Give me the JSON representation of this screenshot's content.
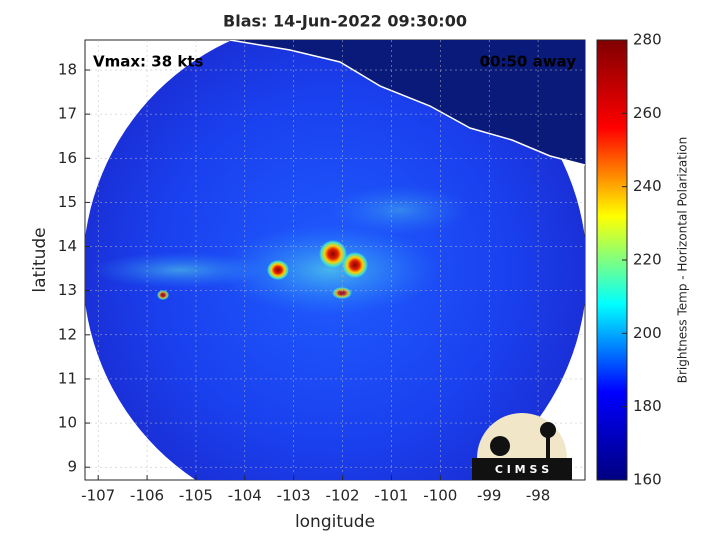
{
  "chart_data": {
    "type": "map",
    "title": "Blas: 14-Jun-2022 09:30:00",
    "annotations": [
      "Vmax: 38 kts",
      "00:50 away"
    ],
    "xlabel": "longitude",
    "ylabel": "latitude",
    "xlim": [
      -107.27,
      -97.04
    ],
    "ylim": [
      8.71,
      18.68
    ],
    "xticks": [
      -107,
      -106,
      -105,
      -104,
      -103,
      -102,
      -101,
      -100,
      -99,
      -98
    ],
    "yticks": [
      9,
      10,
      11,
      12,
      13,
      14,
      15,
      16,
      17,
      18
    ],
    "grid": true,
    "colorbar": {
      "label": "Brightness Temp - Horizontal Polarization",
      "lim": [
        160,
        280
      ],
      "ticks": [
        160,
        180,
        200,
        220,
        240,
        260,
        280
      ],
      "colormap": "jet"
    },
    "logo": "C I M S S"
  }
}
